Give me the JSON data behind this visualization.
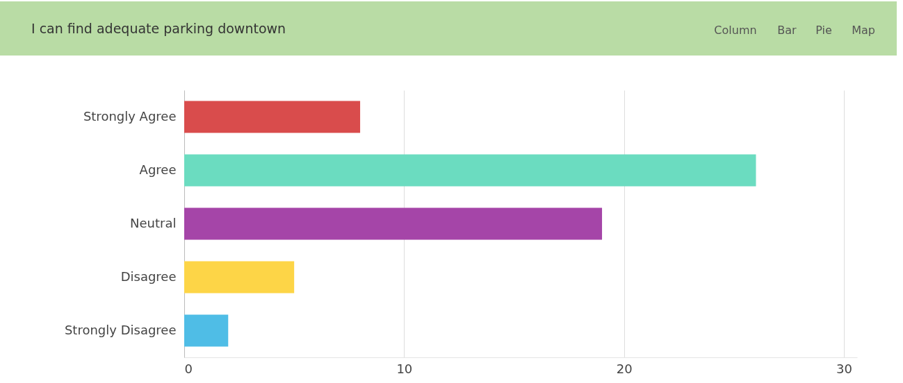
{
  "chart_data": {
    "type": "bar",
    "orientation": "horizontal",
    "title": "I can find adequate parking downtown",
    "annotations": [
      "Column",
      "Bar",
      "Pie",
      "Map"
    ],
    "categories": [
      "Strongly Agree",
      "Agree",
      "Neutral",
      "Disagree",
      "Strongly Disagree"
    ],
    "values": [
      8,
      26,
      19,
      5,
      2
    ],
    "colors": [
      "#d94c4c",
      "#6bdcc0",
      "#a545a8",
      "#fdd547",
      "#4fbde6"
    ],
    "xlim": [
      0,
      30.6
    ],
    "xticks": [
      0,
      10,
      20,
      30
    ],
    "grid": "x",
    "legend": false
  }
}
